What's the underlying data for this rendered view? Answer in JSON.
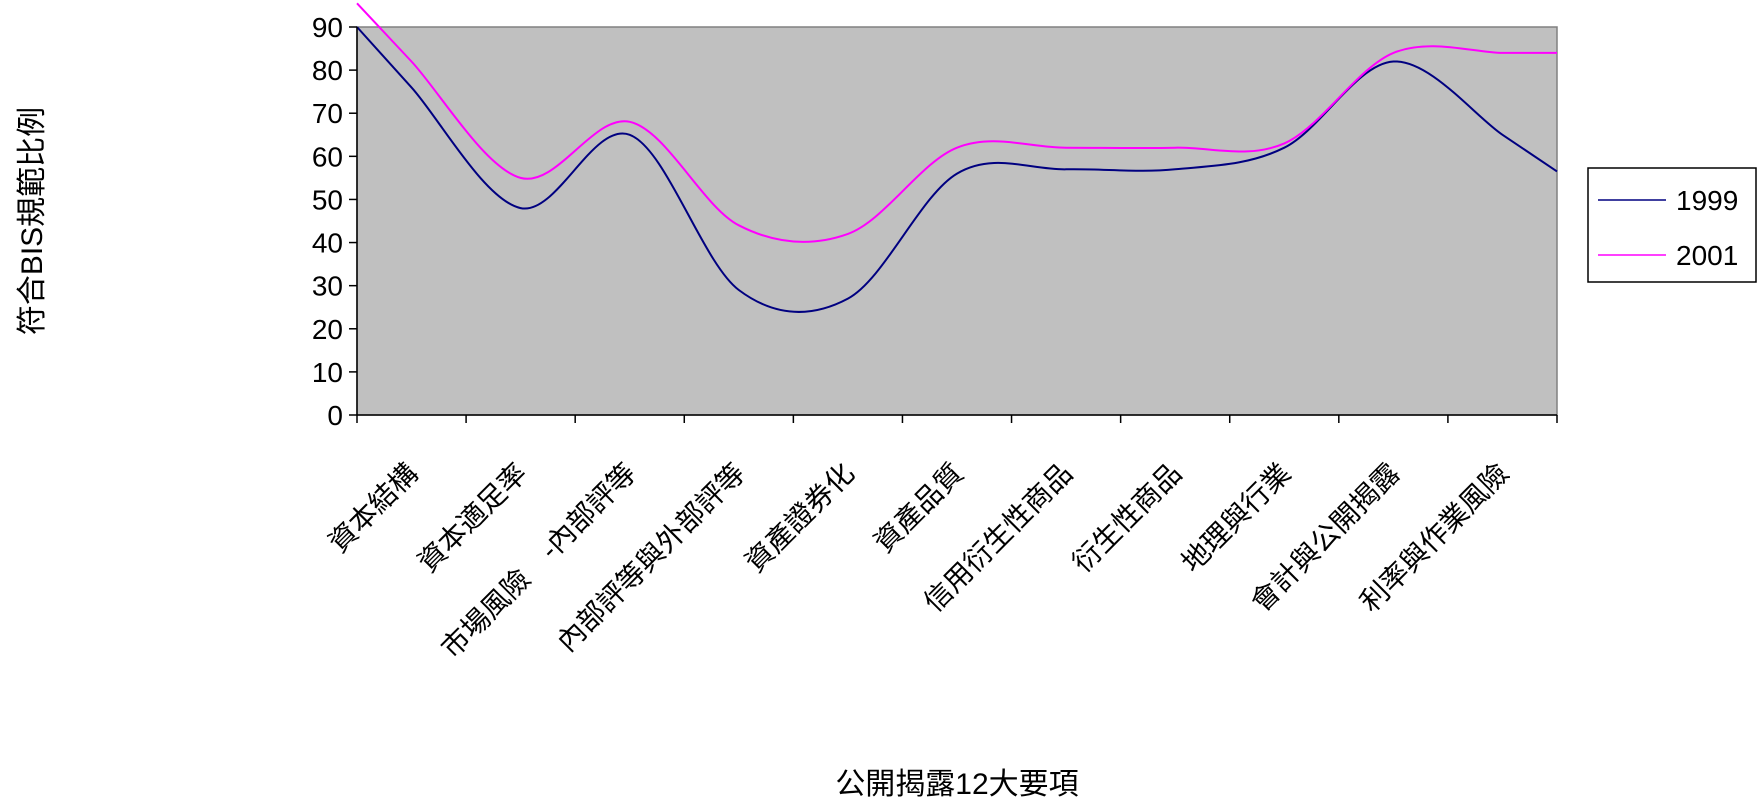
{
  "chart_data": {
    "type": "line",
    "title": "",
    "xlabel": "公開揭露12大要項",
    "ylabel": "符合BIS規範比例",
    "ylim": [
      0,
      90
    ],
    "yticks": [
      0,
      10,
      20,
      30,
      40,
      50,
      60,
      70,
      80,
      90
    ],
    "grid": false,
    "legend_position": "right",
    "plot_background": "#c0c0c0",
    "categories": [
      "資本結構",
      "資本適足率",
      "市場風險　-內部評等",
      "內部評等與外部評等",
      "資產證券化",
      "資產品質",
      "信用衍生性商品",
      "衍生性商品",
      "地理與行業",
      "會計與公開揭露",
      "利率與作業風險"
    ],
    "series": [
      {
        "name": "1999",
        "color": "#000080",
        "values": [
          76,
          48,
          65,
          29,
          27,
          56,
          57,
          57,
          62,
          82,
          65
        ]
      },
      {
        "name": "2001",
        "color": "#ff00ff",
        "values": [
          82,
          55,
          68,
          44,
          42,
          62,
          62,
          62,
          63,
          84,
          84
        ]
      }
    ]
  }
}
